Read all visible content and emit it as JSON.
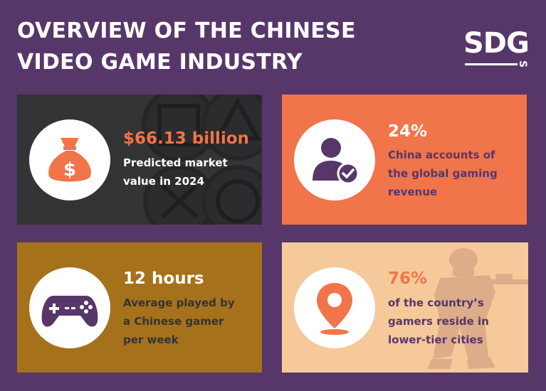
{
  "title": {
    "line1": "OVERVIEW OF THE CHINESE",
    "line2": "VIDEO GAME INDUSTRY"
  },
  "logo": {
    "text": "SDG",
    "suffix": "S"
  },
  "cards": [
    {
      "value": "$66.13 billion",
      "description": [
        "Predicted market",
        "value in 2024"
      ],
      "icon": "money-bag-icon",
      "bg_color": "#343335",
      "value_color": "#f0754a",
      "desc_color": "#ffffff"
    },
    {
      "value": "24%",
      "description": [
        "China accounts of",
        "the global gaming",
        "revenue"
      ],
      "icon": "verified-user-icon",
      "bg_color": "#f0754a",
      "value_color": "#ffffff",
      "desc_color": "#573769"
    },
    {
      "value": "12 hours",
      "description": [
        "Average played by",
        "a Chinese gamer",
        "per week"
      ],
      "icon": "gamepad-icon",
      "bg_color": "#a6711b",
      "value_color": "#ffffff",
      "desc_color": "#343335"
    },
    {
      "value": "76%",
      "description": [
        "of the country’s",
        "gamers reside in",
        "lower-tier cities"
      ],
      "icon": "location-pin-icon",
      "bg_color": "#f6c99a",
      "value_color": "#f0754a",
      "desc_color": "#573769"
    }
  ],
  "colors": {
    "background": "#573769",
    "accent": "#f0754a",
    "purple": "#573769"
  }
}
